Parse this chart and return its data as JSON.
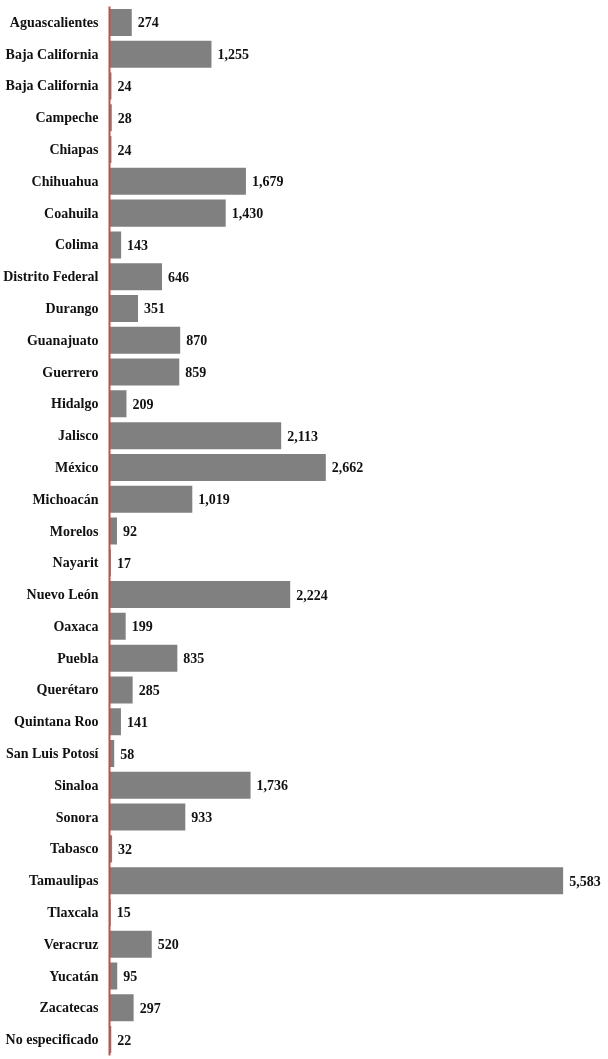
{
  "chart_data": {
    "type": "bar",
    "orientation": "horizontal",
    "grid": false,
    "tick_labels": "y",
    "categories": [
      "Aguascalientes",
      "Baja California",
      "Baja California",
      "Campeche",
      "Chiapas",
      "Chihuahua",
      "Coahuila",
      "Colima",
      "Distrito Federal",
      "Durango",
      "Guanajuato",
      "Guerrero",
      "Hidalgo",
      "Jalisco",
      "México",
      "Michoacán",
      "Morelos",
      "Nayarit",
      "Nuevo León",
      "Oaxaca",
      "Puebla",
      "Querétaro",
      "Quintana Roo",
      "San Luis Potosí",
      "Sinaloa",
      "Sonora",
      "Tabasco",
      "Tamaulipas",
      "Tlaxcala",
      "Veracruz",
      "Yucatán",
      "Zacatecas",
      "No especificado"
    ],
    "series": [
      {
        "color": "#808080",
        "values": [
          274,
          1255,
          24,
          28,
          24,
          1679,
          1430,
          143,
          646,
          351,
          870,
          859,
          209,
          2113,
          2662,
          1019,
          92,
          17,
          2224,
          199,
          835,
          285,
          141,
          58,
          1736,
          933,
          32,
          5583,
          15,
          520,
          95,
          297,
          22
        ],
        "value_labels": [
          "274",
          "1,255",
          "24",
          "28",
          "24",
          "1,679",
          "1,430",
          "143",
          "646",
          "351",
          "870",
          "859",
          "209",
          "2,113",
          "2,662",
          "1,019",
          "92",
          "17",
          "2,224",
          "199",
          "835",
          "285",
          "141",
          "58",
          "1,736",
          "933",
          "32",
          "5,583",
          "15",
          "520",
          "95",
          "297",
          "22"
        ]
      }
    ]
  }
}
